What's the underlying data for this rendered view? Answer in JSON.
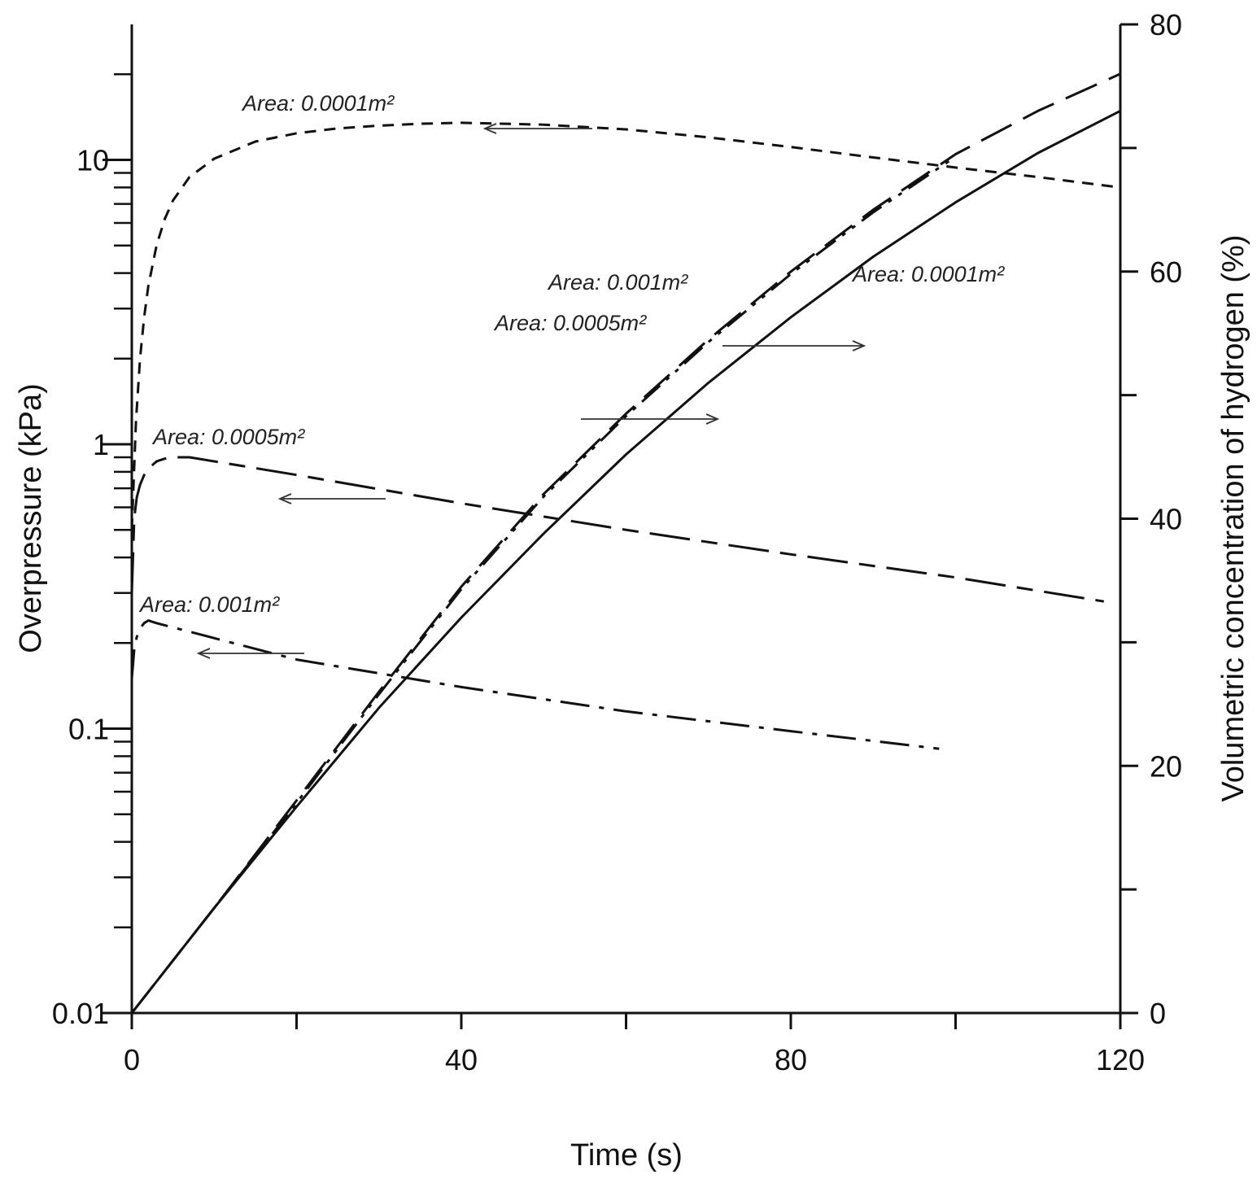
{
  "chart_data": {
    "type": "line",
    "xlabel": "Time (s)",
    "ylabel_left": "Overpressure (kPa)",
    "ylabel_right": "Volumetric concentration of hydrogen (%)",
    "xlim": [
      0,
      120
    ],
    "ylim_left": [
      0.01,
      25
    ],
    "yscale_left": "log",
    "ylim_right": [
      0,
      80
    ],
    "grid": false,
    "legend": "none",
    "x_ticks": [
      0,
      40,
      80,
      120
    ],
    "x_ticks_labels": [
      "0",
      "40",
      "80",
      "120"
    ],
    "left_ticks_labels": [
      "0.01",
      "0.1",
      "1",
      "10"
    ],
    "left_ticks_values": [
      0.01,
      0.1,
      1,
      10
    ],
    "right_ticks": [
      0,
      20,
      40,
      60,
      80
    ],
    "right_ticks_labels": [
      "0",
      "20",
      "40",
      "60",
      "80"
    ],
    "series": [
      {
        "axis": "left",
        "style": "short-dash",
        "x": [
          0,
          0.5,
          1,
          1.5,
          2,
          3,
          4,
          5,
          7,
          10,
          15,
          20,
          25,
          30,
          35,
          40,
          50,
          60,
          70,
          80,
          90,
          100,
          110,
          120
        ],
        "y": [
          0.5,
          1.2,
          2.0,
          2.8,
          3.6,
          5.0,
          6.2,
          7.2,
          8.7,
          10.1,
          11.6,
          12.4,
          12.9,
          13.2,
          13.4,
          13.5,
          13.3,
          12.8,
          12.0,
          11.1,
          10.2,
          9.4,
          8.7,
          8.0
        ]
      },
      {
        "axis": "left",
        "style": "long-short-dash",
        "x": [
          0,
          0.3,
          0.6,
          1,
          1.5,
          2,
          3,
          4,
          5,
          7,
          20,
          40,
          60,
          80,
          100,
          118
        ],
        "y": [
          0.3,
          0.55,
          0.65,
          0.72,
          0.78,
          0.82,
          0.87,
          0.89,
          0.9,
          0.9,
          0.78,
          0.62,
          0.5,
          0.41,
          0.34,
          0.28
        ]
      },
      {
        "axis": "left",
        "style": "dash-dot",
        "x": [
          0,
          0.3,
          0.6,
          1,
          1.5,
          2,
          3,
          20,
          40,
          60,
          80,
          98
        ],
        "y": [
          0.15,
          0.19,
          0.21,
          0.225,
          0.235,
          0.24,
          0.235,
          0.175,
          0.14,
          0.115,
          0.098,
          0.085
        ]
      },
      {
        "axis": "right",
        "style": "solid",
        "x": [
          0,
          10,
          20,
          30,
          40,
          50,
          60,
          70,
          80,
          90,
          100,
          110,
          120
        ],
        "y": [
          0,
          8.5,
          16.7,
          24.7,
          32.0,
          38.8,
          45.2,
          51.0,
          56.3,
          61.2,
          65.6,
          69.6,
          73.0
        ]
      },
      {
        "axis": "right",
        "style": "long-dash",
        "x": [
          0,
          10,
          20,
          30,
          40,
          50,
          60,
          70,
          80,
          90,
          100,
          110,
          120
        ],
        "y": [
          0,
          8.5,
          17.2,
          26.0,
          34.5,
          42.0,
          48.5,
          54.5,
          60.0,
          65.0,
          69.5,
          73.0,
          76.0
        ]
      },
      {
        "axis": "right",
        "style": "dash-dot-dot",
        "x": [
          0,
          10,
          20,
          30,
          40,
          50,
          60,
          70,
          80,
          90,
          100
        ],
        "y": [
          0,
          8.5,
          17.0,
          25.8,
          34.3,
          41.8,
          48.3,
          54.3,
          59.8,
          64.8,
          69.3
        ]
      }
    ],
    "annotations": [
      {
        "text": "Area: 0.0001m²"
      },
      {
        "text": "Area: 0.0005m²"
      },
      {
        "text": "Area: 0.001m²"
      },
      {
        "text": "Area: 0.001m²"
      },
      {
        "text": "Area: 0.0005m²"
      },
      {
        "text": "Area: 0.0001m²"
      }
    ]
  }
}
